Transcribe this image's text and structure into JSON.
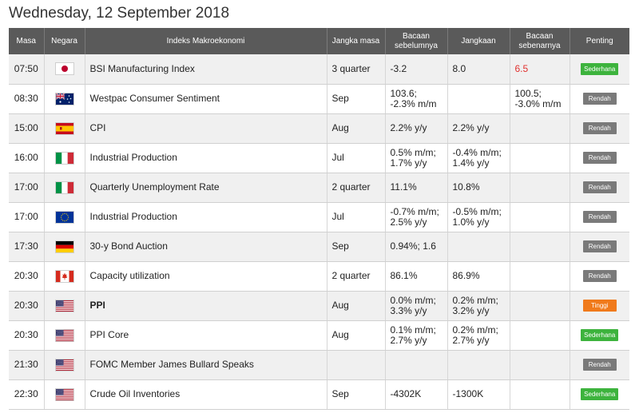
{
  "page": {
    "title": "Wednesday, 12 September 2018"
  },
  "headers": {
    "time": "Masa",
    "country": "Negara",
    "indicator": "Indeks Makroekonomi",
    "period": "Jangka masa",
    "previous": "Bacaan sebelumnya",
    "forecast": "Jangkaan",
    "actual": "Bacaan sebenarnya",
    "importance": "Penting"
  },
  "colors": {
    "header_bg": "#5a5a5a",
    "row_alt_bg": "#f0f0f0",
    "badge_low": "#7a7a7a",
    "badge_medium": "#3db33d",
    "badge_high": "#f07a1b",
    "actual_highlight": "#e0312e"
  },
  "rows": [
    {
      "time": "07:50",
      "flag": "japan-flag-icon",
      "indicator": "BSI Manufacturing Index",
      "period": "3 quarter",
      "previous": [
        "-3.2"
      ],
      "forecast": [
        "8.0"
      ],
      "actual": [
        "6.5"
      ],
      "actual_highlight": true,
      "importance": "Sederhana",
      "level": "green"
    },
    {
      "time": "08:30",
      "flag": "australia-flag-icon",
      "indicator": "Westpac Consumer Sentiment",
      "period": "Sep",
      "previous": [
        "103.6;",
        "-2.3% m/m"
      ],
      "forecast": [],
      "actual": [
        "100.5;",
        "-3.0% m/m"
      ],
      "importance": "Rendah",
      "level": "gray"
    },
    {
      "time": "15:00",
      "flag": "spain-flag-icon",
      "indicator": "CPI",
      "period": "Aug",
      "previous": [
        "2.2% y/y"
      ],
      "forecast": [
        "2.2% y/y"
      ],
      "actual": [],
      "importance": "Rendah",
      "level": "gray"
    },
    {
      "time": "16:00",
      "flag": "italy-flag-icon",
      "indicator": "Industrial Production",
      "period": "Jul",
      "previous": [
        "0.5% m/m;",
        "1.7% y/y"
      ],
      "forecast": [
        "-0.4% m/m;",
        "1.4% y/y"
      ],
      "actual": [],
      "importance": "Rendah",
      "level": "gray"
    },
    {
      "time": "17:00",
      "flag": "italy-flag-icon",
      "indicator": "Quarterly Unemployment Rate",
      "period": "2 quarter",
      "previous": [
        "11.1%"
      ],
      "forecast": [
        "10.8%"
      ],
      "actual": [],
      "importance": "Rendah",
      "level": "gray"
    },
    {
      "time": "17:00",
      "flag": "eu-flag-icon",
      "indicator": "Industrial Production",
      "period": "Jul",
      "previous": [
        "-0.7% m/m;",
        "2.5% y/y"
      ],
      "forecast": [
        "-0.5% m/m;",
        "1.0% y/y"
      ],
      "actual": [],
      "importance": "Rendah",
      "level": "gray"
    },
    {
      "time": "17:30",
      "flag": "germany-flag-icon",
      "indicator": "30-y Bond Auction",
      "period": "Sep",
      "previous": [
        "0.94%; 1.6"
      ],
      "forecast": [],
      "actual": [],
      "importance": "Rendah",
      "level": "gray"
    },
    {
      "time": "20:30",
      "flag": "canada-flag-icon",
      "indicator": "Capacity utilization",
      "period": "2 quarter",
      "previous": [
        "86.1%"
      ],
      "forecast": [
        "86.9%"
      ],
      "actual": [],
      "importance": "Rendah",
      "level": "gray"
    },
    {
      "time": "20:30",
      "flag": "usa-flag-icon",
      "indicator": "PPI",
      "period": "Aug",
      "previous": [
        "0.0% m/m;",
        "3.3% y/y"
      ],
      "forecast": [
        "0.2% m/m;",
        "3.2% y/y"
      ],
      "actual": [],
      "importance": "Tinggi",
      "level": "orange",
      "bold": true
    },
    {
      "time": "20:30",
      "flag": "usa-flag-icon",
      "indicator": "PPI Core",
      "period": "Aug",
      "previous": [
        "0.1% m/m;",
        "2.7% y/y"
      ],
      "forecast": [
        "0.2% m/m;",
        "2.7% y/y"
      ],
      "actual": [],
      "importance": "Sederhana",
      "level": "green"
    },
    {
      "time": "21:30",
      "flag": "usa-flag-icon",
      "indicator": "FOMC Member James Bullard Speaks",
      "period": "",
      "previous": [],
      "forecast": [],
      "actual": [],
      "importance": "Rendah",
      "level": "gray"
    },
    {
      "time": "22:30",
      "flag": "usa-flag-icon",
      "indicator": "Crude Oil Inventories",
      "period": "Sep",
      "previous": [
        "-4302K"
      ],
      "forecast": [
        "-1300K"
      ],
      "actual": [],
      "importance": "Sederhana",
      "level": "green"
    }
  ]
}
